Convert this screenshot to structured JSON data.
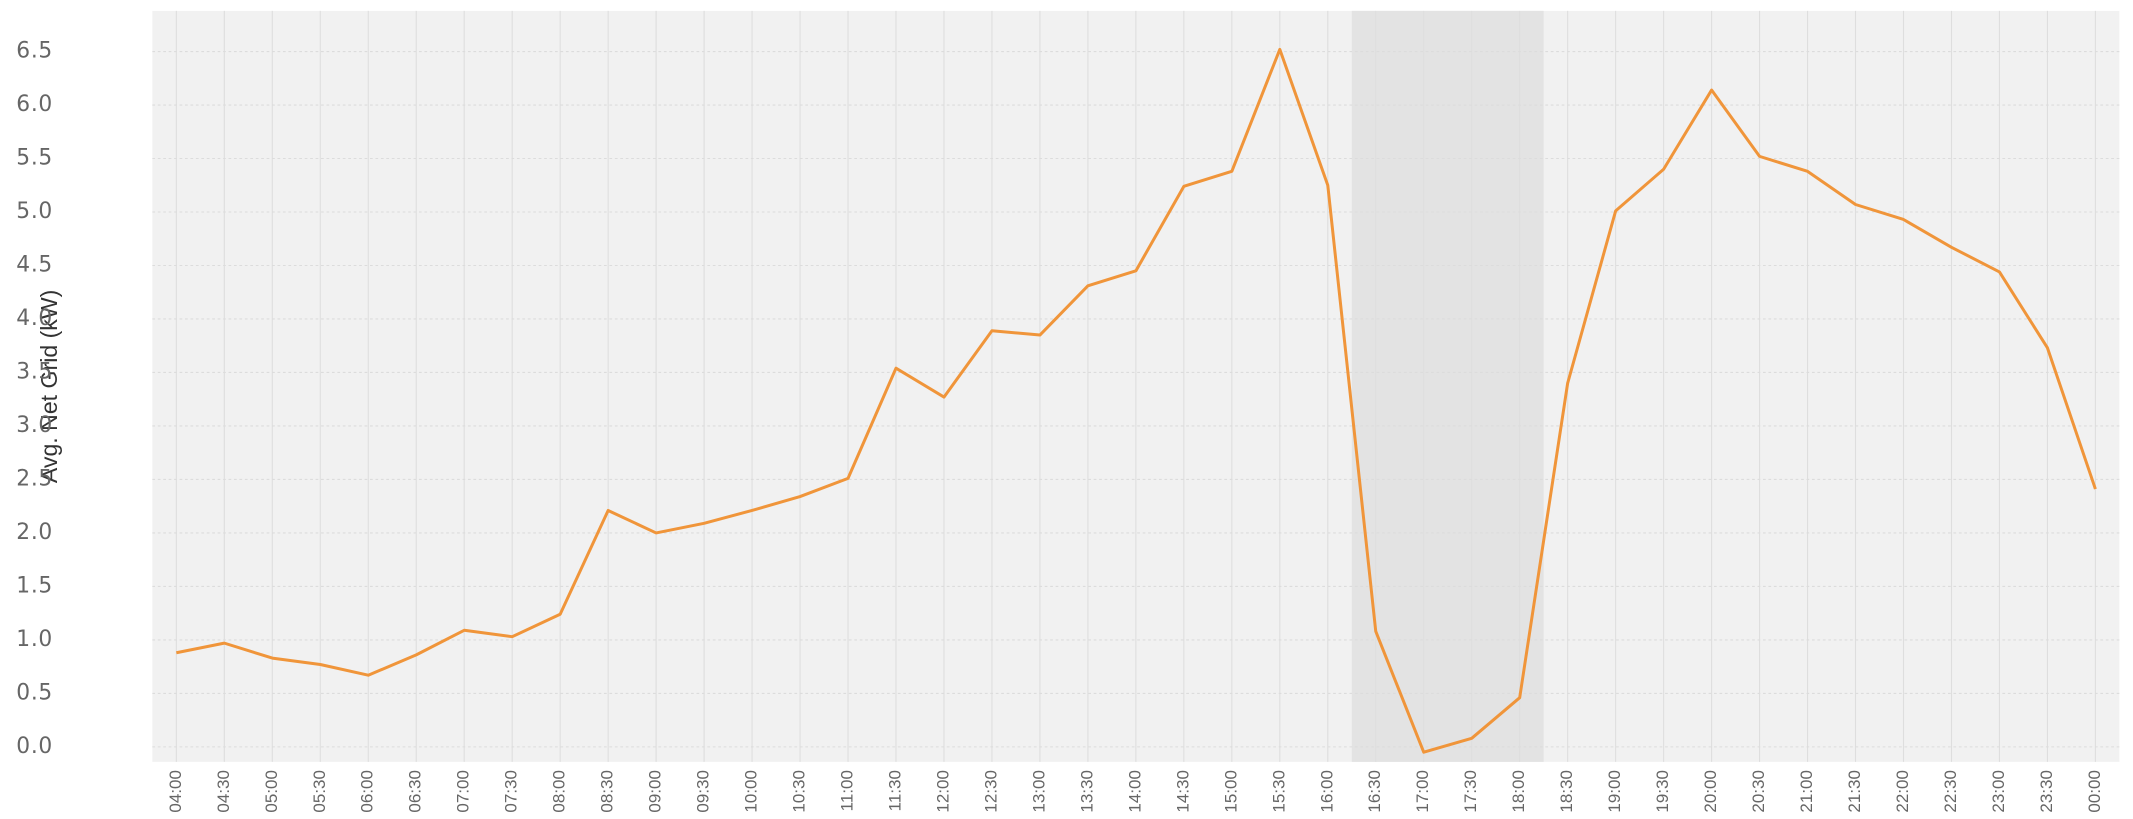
{
  "chart_data": {
    "type": "line",
    "y_label": "Avg. Net Grid (kW)",
    "categories": [
      "04:00",
      "04:30",
      "05:00",
      "05:30",
      "06:00",
      "06:30",
      "07:00",
      "07:30",
      "08:00",
      "08:30",
      "09:00",
      "09:30",
      "10:00",
      "10:30",
      "11:00",
      "11:30",
      "12:00",
      "12:30",
      "13:00",
      "13:30",
      "14:00",
      "14:30",
      "15:00",
      "15:30",
      "16:00",
      "16:30",
      "17:00",
      "17:30",
      "18:00",
      "18:30",
      "19:00",
      "19:30",
      "20:00",
      "20:30",
      "21:00",
      "21:30",
      "22:00",
      "22:30",
      "23:00",
      "23:30",
      "00:00"
    ],
    "series": [
      {
        "color": "#f0953a",
        "values": [
          0.88,
          0.97,
          0.83,
          0.77,
          0.67,
          0.86,
          1.09,
          1.03,
          1.24,
          2.21,
          2.0,
          2.09,
          2.21,
          2.34,
          2.51,
          3.54,
          3.27,
          3.89,
          3.85,
          4.31,
          4.45,
          5.24,
          5.38,
          6.52,
          5.25,
          1.08,
          -0.05,
          0.08,
          0.46,
          3.4,
          5.01,
          5.4,
          6.14,
          5.52,
          5.38,
          5.07,
          4.93,
          4.67,
          4.44,
          3.73,
          2.41
        ]
      }
    ],
    "ylim": [
      -0.14,
      6.88
    ],
    "yticks": [
      {
        "value": 0,
        "label": "0.0"
      },
      0.5,
      {
        "value": 1,
        "label": "1.0"
      },
      1.5,
      {
        "value": 2,
        "label": "2.0"
      },
      2.5,
      {
        "value": 3,
        "label": "3.0"
      },
      3.5,
      {
        "value": 4,
        "label": "4.0"
      },
      4.5,
      {
        "value": 5,
        "label": "5.0"
      },
      5.5,
      {
        "value": 6,
        "label": "6.0"
      },
      6.5
    ],
    "grid": true,
    "highlight": {
      "from": "16:30",
      "to": "18:00"
    }
  }
}
